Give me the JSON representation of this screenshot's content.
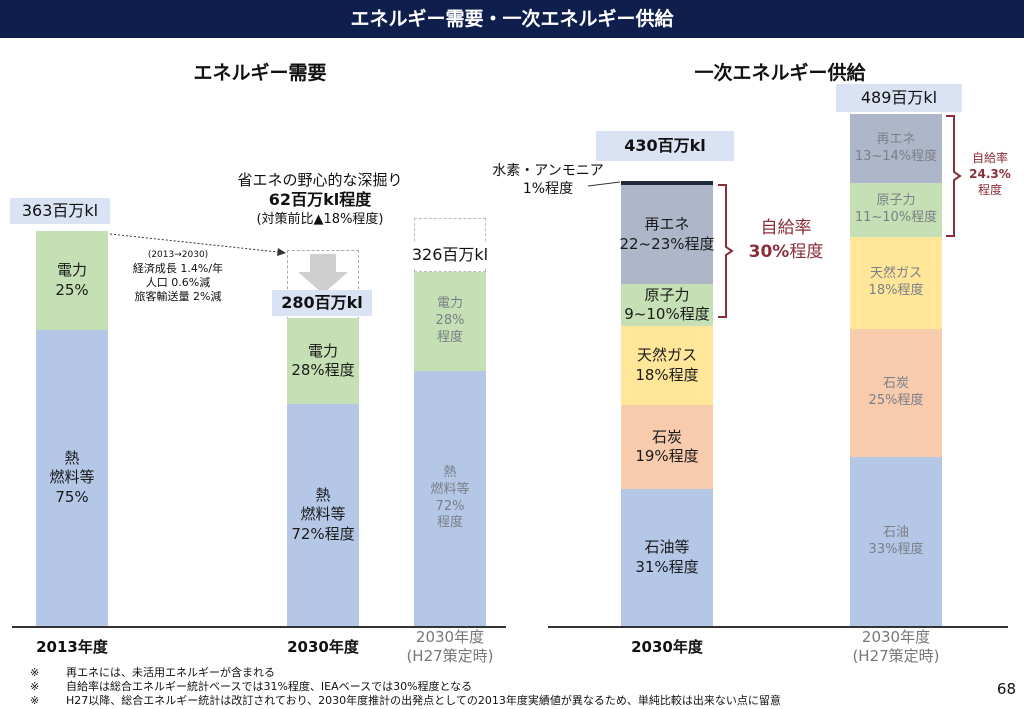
{
  "header": {
    "title": "エネルギー需要・一次エネルギー供給"
  },
  "demand": {
    "title": "エネルギー需要",
    "bar2013": {
      "total_label": "363百万kl",
      "year_label": "2013年度",
      "segments": [
        {
          "lines": [
            "熱",
            "燃料等",
            "75%"
          ],
          "value": 75
        },
        {
          "lines": [
            "電力",
            "25%"
          ],
          "value": 25
        }
      ]
    },
    "bar2030": {
      "total_label": "280百万kl",
      "year_label": "2030年度",
      "segments": [
        {
          "lines": [
            "熱",
            "燃料等",
            "72%程度"
          ],
          "value": 72
        },
        {
          "lines": [
            "電力",
            "28%程度"
          ],
          "value": 28
        }
      ]
    },
    "bar2030_old": {
      "total_label": "326百万kl",
      "year_label": [
        "2030年度",
        "(H27策定時)"
      ],
      "segments": [
        {
          "lines": [
            "熱",
            "燃料等",
            "72%",
            "程度"
          ],
          "value": 72
        },
        {
          "lines": [
            "電力",
            "28%",
            "程度"
          ],
          "value": 28
        }
      ]
    },
    "growth_note": [
      "(2013→2030)",
      "経済成長 1.4%/年",
      "人口  0.6%減",
      "旅客輸送量  2%減"
    ],
    "savings": {
      "line1": "省エネの野心的な深掘り",
      "line2": "62百万kl程度",
      "line3": "(対策前比▲18%程度)"
    }
  },
  "supply": {
    "title": "一次エネルギー供給",
    "bar2030": {
      "total_label": "430百万kl",
      "year_label": "2030年度",
      "segments": [
        {
          "lines": [
            "石油等",
            "31%程度"
          ],
          "value": 31
        },
        {
          "lines": [
            "石炭",
            "19%程度"
          ],
          "value": 19
        },
        {
          "lines": [
            "天然ガス",
            "18%程度"
          ],
          "value": 18
        },
        {
          "lines": [
            "原子力",
            "9~10%程度"
          ],
          "value": 9.5
        },
        {
          "lines": [
            "再エネ",
            "22~23%程度"
          ],
          "value": 22.5
        },
        {
          "lines": [],
          "value": 1
        }
      ],
      "hydrogen_label": [
        "水素・アンモニア",
        "1%程度"
      ],
      "self_sufficiency": [
        "自給率",
        "30%",
        "程度"
      ]
    },
    "bar2030_old": {
      "total_label": "489百万kl",
      "year_label": [
        "2030年度",
        "(H27策定時)"
      ],
      "segments": [
        {
          "lines": [
            "石油",
            "33%程度"
          ],
          "value": 33
        },
        {
          "lines": [
            "石炭",
            "25%程度"
          ],
          "value": 25
        },
        {
          "lines": [
            "天然ガス",
            "18%程度"
          ],
          "value": 18
        },
        {
          "lines": [
            "原子力",
            "11~10%程度"
          ],
          "value": 10.5
        },
        {
          "lines": [
            "再エネ",
            "13~14%程度"
          ],
          "value": 13.5
        }
      ],
      "self_sufficiency": [
        "自給率",
        "24.3%",
        "程度"
      ]
    }
  },
  "notes": [
    {
      "mark": "※",
      "text": "再エネには、未活用エネルギーが含まれる"
    },
    {
      "mark": "※",
      "text": "自給率は総合エネルギー統計ベースでは31%程度、IEAベースでは30%程度となる"
    },
    {
      "mark": "※",
      "text": "H27以降、総合エネルギー統計は改訂されており、2030年度推計の出発点としての2013年度実績値が異なるため、単純比較は出来ない点に留意"
    }
  ],
  "page_number": "68",
  "colors": {
    "header_bg": "#0e1f4d",
    "heat": "#b4c7e7",
    "electricity": "#c5e0b4",
    "oil": "#b4c7e7",
    "coal": "#f8cbad",
    "gas": "#ffe699",
    "nuclear": "#c5e0b4",
    "renewable": "#aeb7c9",
    "hydrogen": "#1f2a3a",
    "total_box": "#dae3f3",
    "bracket": "#8b2e3a",
    "arrow": "#cfcfcf"
  }
}
